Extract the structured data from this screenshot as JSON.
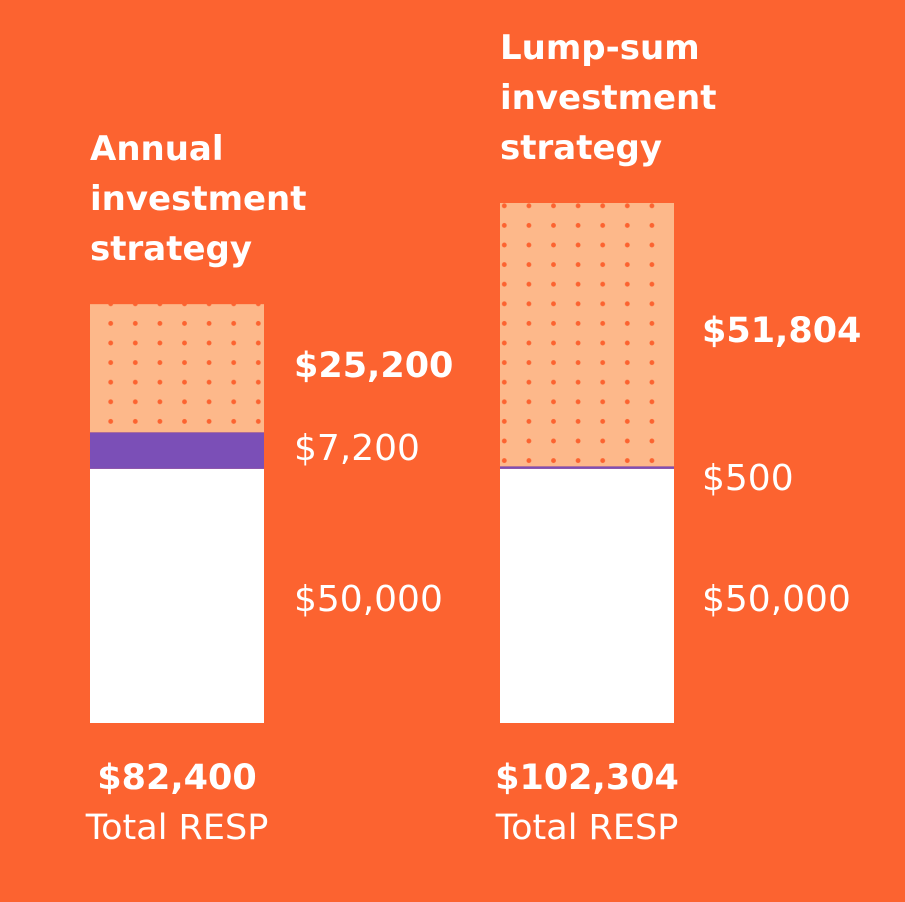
{
  "colors": {
    "background": "#fc6330",
    "contribution": "#ffffff",
    "grant": "#7b4fb7",
    "growth": "#fdb88a",
    "growth_dot": "#fc6330",
    "text": "#ffffff"
  },
  "chart_data": {
    "type": "bar",
    "stacked": true,
    "categories": [
      "Annual investment strategy",
      "Lump-sum investment strategy"
    ],
    "series": [
      {
        "values": [
          50000,
          50000
        ],
        "labels": [
          "$50,000",
          "$50,000"
        ]
      },
      {
        "values": [
          7200,
          500
        ],
        "labels": [
          "$7,200",
          "$500"
        ]
      },
      {
        "values": [
          25200,
          51804
        ],
        "labels": [
          "$25,200",
          "$51,804"
        ]
      }
    ],
    "totals": [
      {
        "value": "$82,400",
        "label": "Total RESP"
      },
      {
        "value": "$102,304",
        "label": "Total RESP"
      }
    ],
    "ylim": [
      0,
      102304
    ],
    "grid": false,
    "legend": "none"
  }
}
